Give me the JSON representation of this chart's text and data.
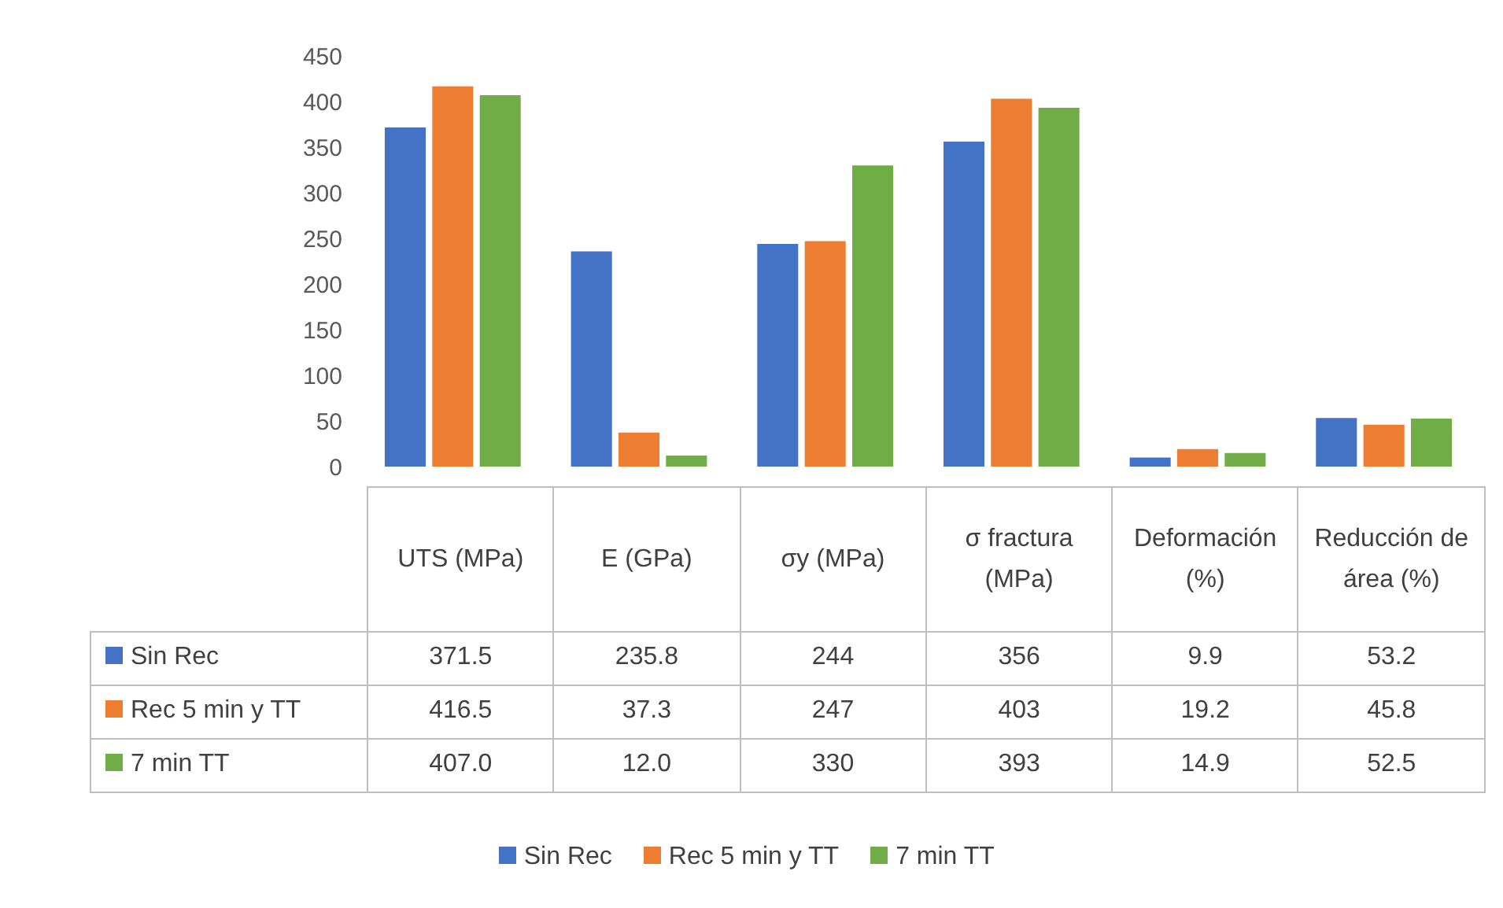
{
  "chart_data": {
    "type": "bar",
    "categories": [
      "UTS (MPa)",
      "E (GPa)",
      "σy (MPa)",
      "σ fractura (MPa)",
      "Deformación (%)",
      "Reducción de área (%)"
    ],
    "series": [
      {
        "name": "Sin Rec",
        "color": "#4472c4",
        "values": [
          371.5,
          235.8,
          244,
          356,
          9.9,
          53.2
        ],
        "value_labels": [
          "371.5",
          "235.8",
          "244",
          "356",
          "9.9",
          "53.2"
        ]
      },
      {
        "name": "Rec 5 min y TT",
        "color": "#ed7d31",
        "values": [
          416.5,
          37.3,
          247,
          403,
          19.2,
          45.8
        ],
        "value_labels": [
          "416.5",
          "37.3",
          "247",
          "403",
          "19.2",
          "45.8"
        ]
      },
      {
        "name": "7 min TT",
        "color": "#70ad47",
        "values": [
          407.0,
          12.0,
          330,
          393,
          14.9,
          52.5
        ],
        "value_labels": [
          "407.0",
          "12.0",
          "330",
          "393",
          "14.9",
          "52.5"
        ]
      }
    ],
    "ylim": [
      0,
      450
    ],
    "yticks": [
      0,
      50,
      100,
      150,
      200,
      250,
      300,
      350,
      400,
      450
    ],
    "grid": false,
    "legend": "bottom"
  }
}
